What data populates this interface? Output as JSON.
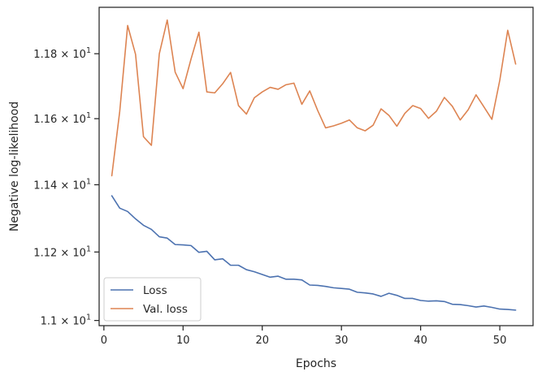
{
  "chart_data": {
    "type": "line",
    "title": "",
    "xlabel": "Epochs",
    "ylabel": "Negative log-likelihood",
    "yscale": "log",
    "xlim": [
      -0.6,
      54.2
    ],
    "ylim": [
      10.985,
      11.945
    ],
    "grid": false,
    "legend_position": "lower-left",
    "x_ticks": [
      0,
      10,
      20,
      30,
      40,
      50
    ],
    "x_tick_labels": [
      "0",
      "10",
      "20",
      "30",
      "40",
      "50"
    ],
    "y_ticks": [
      {
        "value": 11.0,
        "mantissa": "1.1",
        "exponent": "1"
      },
      {
        "value": 11.2,
        "mantissa": "1.12",
        "exponent": "1"
      },
      {
        "value": 11.4,
        "mantissa": "1.14",
        "exponent": "1"
      },
      {
        "value": 11.6,
        "mantissa": "1.16",
        "exponent": "1"
      },
      {
        "value": 11.8,
        "mantissa": "1.18",
        "exponent": "1"
      }
    ],
    "x": [
      1,
      2,
      3,
      4,
      5,
      6,
      7,
      8,
      9,
      10,
      11,
      12,
      13,
      14,
      15,
      16,
      17,
      18,
      19,
      20,
      21,
      22,
      23,
      24,
      25,
      26,
      27,
      28,
      29,
      30,
      31,
      32,
      33,
      34,
      35,
      36,
      37,
      38,
      39,
      40,
      41,
      42,
      43,
      44,
      45,
      46,
      47,
      48,
      49,
      50,
      51,
      52
    ],
    "series": [
      {
        "name": "Loss",
        "color": "#4c72b0",
        "values": [
          11.367,
          11.33,
          11.32,
          11.298,
          11.279,
          11.267,
          11.245,
          11.241,
          11.222,
          11.221,
          11.219,
          11.199,
          11.202,
          11.177,
          11.18,
          11.161,
          11.161,
          11.148,
          11.142,
          11.134,
          11.126,
          11.129,
          11.12,
          11.12,
          11.118,
          11.103,
          11.102,
          11.099,
          11.095,
          11.093,
          11.091,
          11.082,
          11.08,
          11.077,
          11.07,
          11.079,
          11.073,
          11.064,
          11.064,
          11.058,
          11.056,
          11.057,
          11.055,
          11.047,
          11.046,
          11.043,
          11.039,
          11.042,
          11.038,
          11.033,
          11.032,
          11.03
        ]
      },
      {
        "name": "Val. loss",
        "color": "#dd8452",
        "values": [
          11.427,
          11.622,
          11.888,
          11.798,
          11.545,
          11.519,
          11.8,
          11.905,
          11.743,
          11.692,
          11.783,
          11.867,
          11.682,
          11.679,
          11.707,
          11.742,
          11.64,
          11.614,
          11.664,
          11.682,
          11.696,
          11.69,
          11.704,
          11.709,
          11.644,
          11.685,
          11.625,
          11.572,
          11.578,
          11.586,
          11.596,
          11.572,
          11.563,
          11.58,
          11.63,
          11.61,
          11.577,
          11.616,
          11.64,
          11.631,
          11.601,
          11.623,
          11.665,
          11.638,
          11.596,
          11.627,
          11.673,
          11.636,
          11.598,
          11.718,
          11.873,
          11.768
        ]
      }
    ]
  }
}
